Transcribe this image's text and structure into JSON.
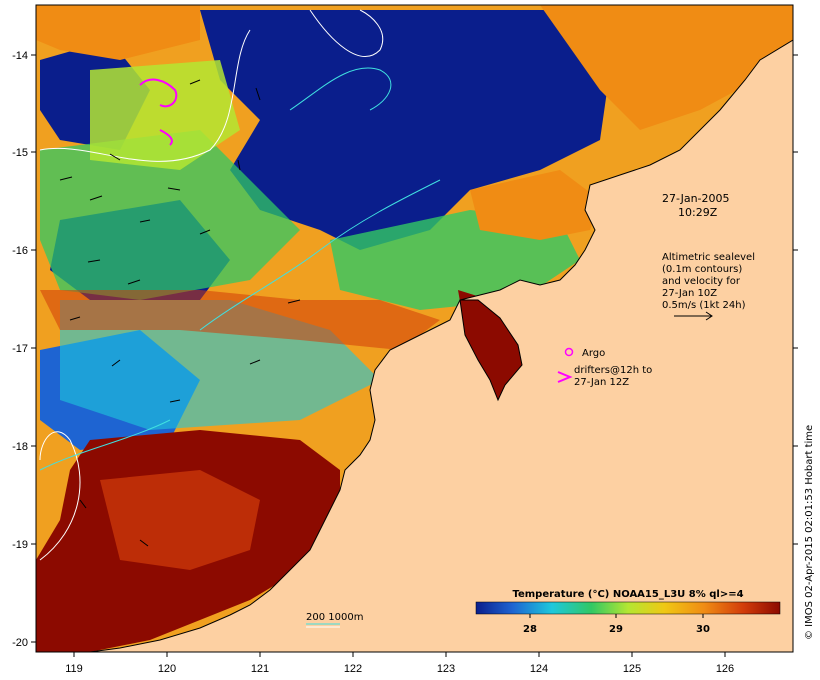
{
  "map": {
    "x_ticks": [
      "119",
      "120",
      "121",
      "122",
      "123",
      "124",
      "125",
      "126"
    ],
    "y_ticks": [
      "-14",
      "-15",
      "-16",
      "-17",
      "-18",
      "-19",
      "-20"
    ],
    "land_color": "#fdd0a2",
    "ocean_palette": [
      "#0a1e8c",
      "#1e64d2",
      "#1ec8dc",
      "#32c864",
      "#b4e632",
      "#f0c814",
      "#f08c14",
      "#d23c0a",
      "#8c0a00"
    ]
  },
  "annotations": {
    "date": "27-Jan-2005",
    "time": "10:29Z",
    "altimetry_lines": [
      "Altimetric sealevel",
      "(0.1m contours)",
      "and velocity for",
      "27-Jan 10Z",
      "0.5m/s (1kt 24h)"
    ],
    "argo_label": "Argo",
    "drifters_lines": [
      "drifters@12h to",
      "27-Jan 12Z"
    ],
    "depth_scale": "200  1000m",
    "credit": "© IMOS 02-Apr-2015 02:01:53 Hobart time"
  },
  "colorbar": {
    "title": "Temperature (°C) NOAA15_L3U 8% ql>=4",
    "ticks": [
      "28",
      "29",
      "30"
    ],
    "colors": [
      "#0a1e8c",
      "#1e64d2",
      "#1ec8dc",
      "#32c864",
      "#b4e632",
      "#f0c814",
      "#f08c14",
      "#d23c0a",
      "#8c0a00"
    ]
  }
}
